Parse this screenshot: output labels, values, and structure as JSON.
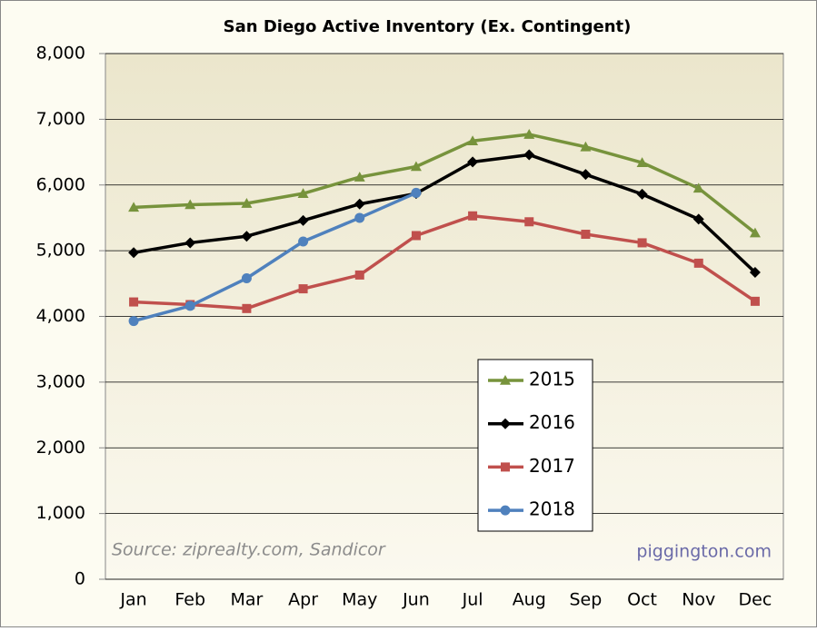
{
  "chart_data": {
    "type": "line",
    "title": "San Diego Active Inventory (Ex. Contingent)",
    "categories": [
      "Jan",
      "Feb",
      "Mar",
      "Apr",
      "May",
      "Jun",
      "Jul",
      "Aug",
      "Sep",
      "Oct",
      "Nov",
      "Dec"
    ],
    "series": [
      {
        "name": "2015",
        "color": "#77933c",
        "marker": "triangle",
        "values": [
          5660,
          5700,
          5720,
          5870,
          6120,
          6280,
          6670,
          6770,
          6580,
          6340,
          5950,
          5270
        ]
      },
      {
        "name": "2016",
        "color": "#000000",
        "marker": "diamond",
        "values": [
          4970,
          5120,
          5220,
          5460,
          5710,
          5870,
          6350,
          6460,
          6160,
          5860,
          5480,
          4670
        ]
      },
      {
        "name": "2017",
        "color": "#c0504d",
        "marker": "square",
        "values": [
          4220,
          4180,
          4120,
          4420,
          4630,
          5230,
          5530,
          5440,
          5250,
          5120,
          4810,
          4230
        ]
      },
      {
        "name": "2018",
        "color": "#4f81bd",
        "marker": "circle",
        "values": [
          3930,
          4160,
          4580,
          5140,
          5500,
          5880,
          null,
          null,
          null,
          null,
          null,
          null
        ]
      }
    ],
    "ylim": [
      0,
      8000
    ],
    "yticks": [
      0,
      {
        "value": 1000,
        "label": "1,000"
      },
      {
        "value": 2000,
        "label": "2,000"
      },
      {
        "value": 3000,
        "label": "3,000"
      },
      {
        "value": 4000,
        "label": "4,000"
      },
      {
        "value": 5000,
        "label": "5,000"
      },
      {
        "value": 6000,
        "label": "6,000"
      },
      {
        "value": 7000,
        "label": "7,000"
      },
      {
        "value": 8000,
        "label": "8,000"
      }
    ],
    "grid": true,
    "legend": "center",
    "annotations": [
      "Source: ziprealty.com, Sandicor",
      "piggington.com"
    ]
  }
}
